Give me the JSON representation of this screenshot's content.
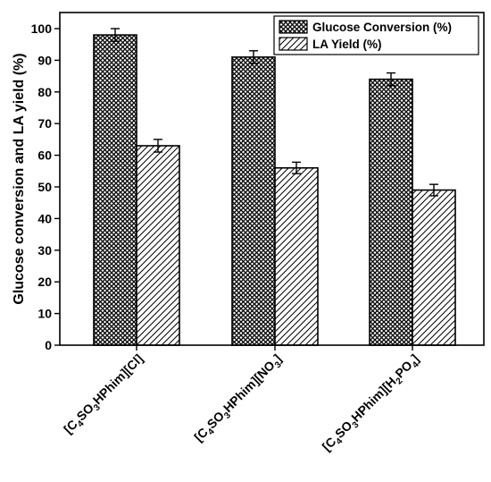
{
  "chart_data": {
    "type": "bar",
    "title": "",
    "xlabel": "",
    "ylabel": "Glucose conversion and LA yield (%)",
    "ylim": [
      0,
      100
    ],
    "yticks": [
      0,
      10,
      20,
      30,
      40,
      50,
      60,
      70,
      80,
      90,
      100
    ],
    "grid": false,
    "legend_position": "top-right",
    "categories": [
      {
        "prefix": "[C",
        "sub1": "4",
        "mid": "SO",
        "sub2": "3",
        "rest": "HPhim][Cl]",
        "sub3": "",
        "tail": "",
        "sub4": "",
        "end": ""
      },
      {
        "prefix": "[C",
        "sub1": "4",
        "mid": "SO",
        "sub2": "3",
        "rest": "HPhim][NO",
        "sub3": "3",
        "tail": "]",
        "sub4": "",
        "end": ""
      },
      {
        "prefix": "[C",
        "sub1": "4",
        "mid": "SO",
        "sub2": "3",
        "rest": "HPhim][H",
        "sub3": "2",
        "tail": "PO",
        "sub4": "4",
        "end": "]"
      }
    ],
    "series": [
      {
        "name": "Glucose Conversion (%)",
        "pattern": "crosshatch",
        "values": [
          98,
          91,
          84
        ],
        "errors": [
          2,
          2,
          2
        ]
      },
      {
        "name": "LA Yield (%)",
        "pattern": "diagonal",
        "values": [
          63,
          56,
          49
        ],
        "errors": [
          2,
          1.8,
          1.8
        ]
      }
    ]
  }
}
